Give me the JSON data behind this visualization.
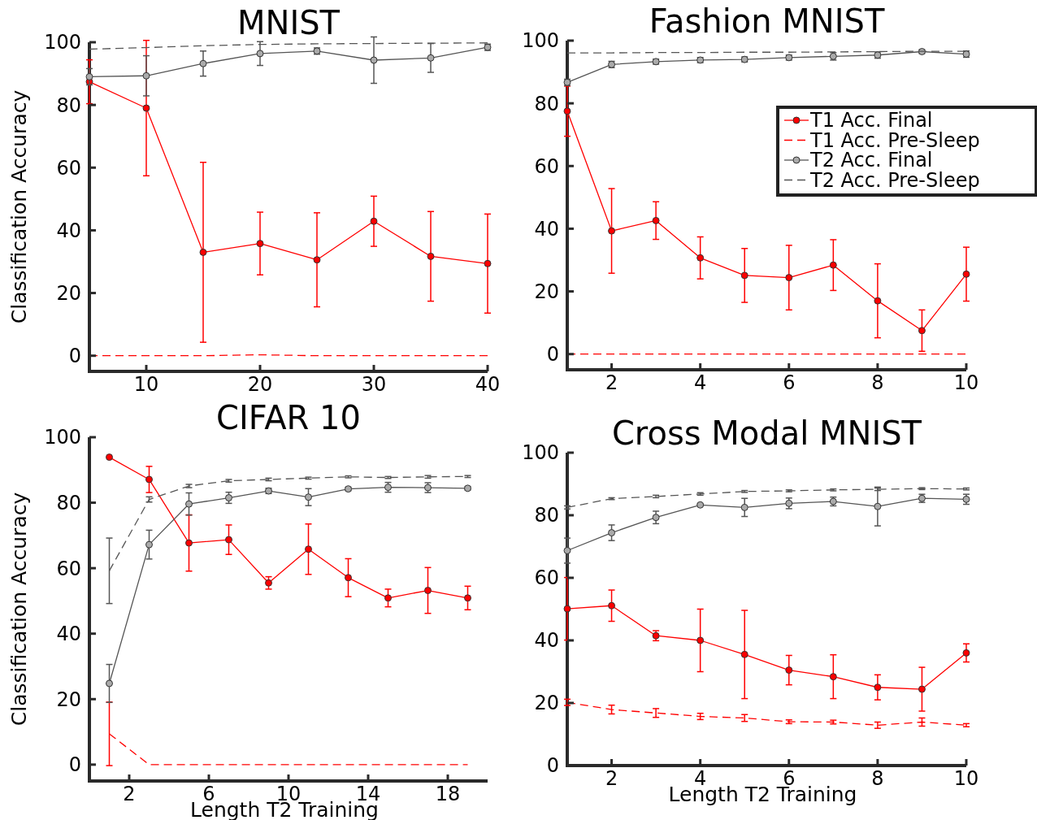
{
  "chart_data": [
    {
      "type": "line",
      "title": "MNIST",
      "ylabel": "Classification Accuracy",
      "x": [
        5,
        10,
        15,
        20,
        25,
        30,
        35,
        40
      ],
      "xlim": [
        5,
        40
      ],
      "xticks": [
        10,
        20,
        30,
        40
      ],
      "ylim": [
        -5,
        100
      ],
      "yticks": [
        0,
        20,
        40,
        60,
        80,
        100
      ],
      "grid": false,
      "legend": false,
      "series": [
        {
          "color": "#ff0000",
          "marker": "circle",
          "line_style": "solid",
          "values": [
            87.4,
            79,
            33,
            35.8,
            30.6,
            42.9,
            31.7,
            29.4
          ],
          "errors": [
            7,
            21.6,
            28.7,
            10,
            15,
            8,
            14.3,
            15.8
          ]
        },
        {
          "color": "#ff0000",
          "marker": "none",
          "line_style": "dashed",
          "values": [
            0,
            0,
            0,
            0.3,
            0,
            0,
            0,
            0
          ]
        },
        {
          "color": "#555555",
          "marker": "circle",
          "line_style": "solid",
          "values": [
            89,
            89.3,
            93.2,
            96.4,
            97.2,
            94.3,
            95,
            98.4
          ],
          "errors": [
            2.6,
            6.4,
            4,
            3.8,
            1,
            7.4,
            4.6,
            1
          ]
        },
        {
          "color": "#555555",
          "marker": "none",
          "line_style": "dashed",
          "values": [
            97.8,
            98.3,
            98.9,
            99.3,
            99.5,
            99.6,
            99.7,
            99.8
          ]
        }
      ]
    },
    {
      "type": "line",
      "title": "Fashion MNIST",
      "x": [
        1,
        2,
        3,
        4,
        5,
        6,
        7,
        8,
        9,
        10
      ],
      "xlim": [
        1,
        10
      ],
      "xticks": [
        2,
        4,
        6,
        8,
        10
      ],
      "ylim": [
        -5,
        100
      ],
      "yticks": [
        0,
        20,
        40,
        60,
        80,
        100
      ],
      "grid": false,
      "legend": "top right",
      "series": [
        {
          "name": "T1 Acc. Final",
          "color": "#ff0000",
          "marker": "circle",
          "line_style": "solid",
          "values": [
            77.5,
            39.3,
            42.6,
            30.7,
            25.1,
            24.4,
            28.4,
            17,
            7.5,
            25.5
          ],
          "errors": [
            8,
            13.5,
            6,
            6.7,
            8.6,
            10.3,
            8.1,
            11.8,
            6.6,
            8.6
          ]
        },
        {
          "name": "T1 Acc. Pre-Sleep",
          "color": "#ff0000",
          "marker": "none",
          "line_style": "dashed",
          "values": [
            0,
            0,
            0,
            0,
            0,
            0,
            0,
            0,
            0,
            0
          ]
        },
        {
          "name": "T2 Acc. Final",
          "color": "#555555",
          "marker": "circle",
          "line_style": "solid",
          "values": [
            86.7,
            92.4,
            93.3,
            93.8,
            94,
            94.6,
            95,
            95.4,
            96.5,
            95.7
          ],
          "errors": [
            1,
            1,
            0.8,
            0.8,
            0.8,
            0.8,
            1.2,
            1,
            0.6,
            1
          ]
        },
        {
          "name": "T2 Acc. Pre-Sleep",
          "color": "#555555",
          "marker": "none",
          "line_style": "dashed",
          "values": [
            96.1,
            96.1,
            96.2,
            96.2,
            96.3,
            96.3,
            96.4,
            96.5,
            96.6,
            96.6
          ]
        }
      ]
    },
    {
      "type": "line",
      "title": "CIFAR 10",
      "xlabel": "Length T2 Training",
      "ylabel": "Classification Accuracy",
      "x": [
        1,
        3,
        5,
        7,
        9,
        11,
        13,
        15,
        17,
        19
      ],
      "xlim": [
        0,
        20
      ],
      "xticks": [
        2,
        6,
        10,
        14,
        18
      ],
      "ylim": [
        -5,
        100
      ],
      "yticks": [
        0,
        20,
        40,
        60,
        80,
        100
      ],
      "grid": false,
      "legend": false,
      "series": [
        {
          "color": "#ff0000",
          "marker": "circle",
          "line_style": "solid",
          "values": [
            93.9,
            87.1,
            67.7,
            68.7,
            55.5,
            65.8,
            57.1,
            50.9,
            53.2,
            50.9
          ],
          "errors": [
            null,
            4,
            8.6,
            4.5,
            1.9,
            7.7,
            5.8,
            2.7,
            7,
            3.6
          ]
        },
        {
          "color": "#ff0000",
          "marker": "none",
          "line_style": "dashed",
          "values": [
            9.4,
            0,
            0,
            0,
            0,
            0,
            0,
            0,
            0,
            0
          ],
          "errors": [
            9.7,
            null,
            null,
            null,
            null,
            null,
            null,
            null,
            null,
            null
          ]
        },
        {
          "color": "#555555",
          "marker": "circle",
          "line_style": "solid",
          "values": [
            24.8,
            67.2,
            79.6,
            81.5,
            83.6,
            81.7,
            84.2,
            84.7,
            84.6,
            84.4
          ],
          "errors": [
            5.8,
            4.4,
            3.4,
            1.7,
            0.8,
            2.6,
            0.5,
            1.5,
            1.5,
            0.5
          ]
        },
        {
          "color": "#555555",
          "marker": "none",
          "line_style": "dashed",
          "values": [
            59.2,
            81,
            85.1,
            86.7,
            87.1,
            87.5,
            87.9,
            87.7,
            87.9,
            88
          ],
          "errors": [
            10,
            0.8,
            0.5,
            0.4,
            0.4,
            0.3,
            0.3,
            0.3,
            0.4,
            0.3
          ]
        }
      ]
    },
    {
      "type": "line",
      "title": "Cross Modal MNIST",
      "xlabel": "Length T2 Training",
      "x": [
        1,
        2,
        3,
        4,
        5,
        6,
        7,
        8,
        9,
        10
      ],
      "xlim": [
        1,
        10
      ],
      "xticks": [
        2,
        4,
        6,
        8,
        10
      ],
      "ylim": [
        0,
        100
      ],
      "yticks": [
        0,
        20,
        40,
        60,
        80,
        100
      ],
      "grid": false,
      "legend": false,
      "series": [
        {
          "color": "#ff0000",
          "marker": "circle",
          "line_style": "solid",
          "values": [
            50.1,
            51.1,
            41.5,
            40,
            35.5,
            30.5,
            28.4,
            25,
            24.4,
            36
          ],
          "errors": [
            10,
            5,
            1.6,
            10,
            14.1,
            4.7,
            7,
            4,
            7,
            2.9
          ]
        },
        {
          "color": "#ff0000",
          "marker": "none",
          "line_style": "dashed",
          "values": [
            20.2,
            17.9,
            16.8,
            15.7,
            15.2,
            14,
            13.9,
            12.9,
            13.9,
            12.9
          ],
          "errors": [
            1,
            1.4,
            1.4,
            1,
            1.1,
            0.6,
            0.6,
            1,
            1.3,
            0.5
          ]
        },
        {
          "color": "#555555",
          "marker": "circle",
          "line_style": "solid",
          "values": [
            68.7,
            74.4,
            79.3,
            83.3,
            82.5,
            83.8,
            84.4,
            82.8,
            85.4,
            85.1
          ],
          "errors": [
            4,
            2.5,
            2,
            0.3,
            2.9,
            1.7,
            1.4,
            6.2,
            1.3,
            1.6
          ]
        },
        {
          "color": "#555555",
          "marker": "none",
          "line_style": "dashed",
          "values": [
            82.5,
            85.3,
            86,
            86.8,
            87.6,
            87.8,
            88.1,
            88.3,
            88.5,
            88.4
          ],
          "errors": [
            0.5,
            0.3,
            0.4,
            0.4,
            0.3,
            0.3,
            0.3,
            0.4,
            0.3,
            0.3
          ]
        }
      ]
    }
  ]
}
